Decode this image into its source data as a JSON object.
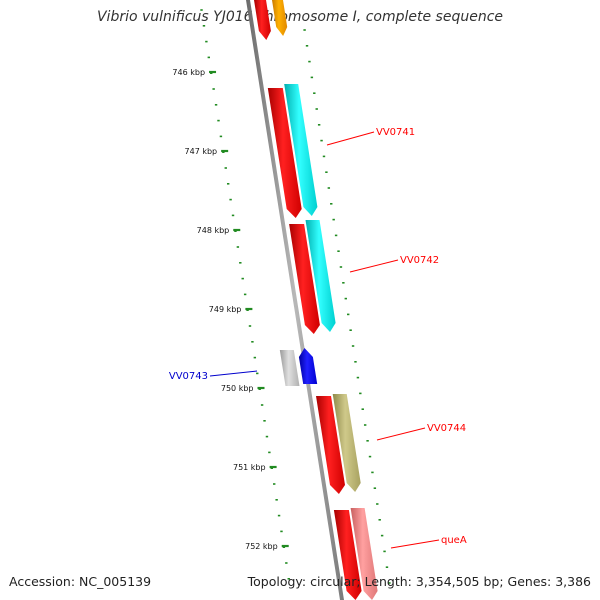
{
  "title": "Vibrio vulnificus YJ016 chromosome I, complete sequence",
  "accession_text": "Accession: NC_005139",
  "topology_text": "Topology: circular; Length: 3,354,505 bp; Genes: 3,386",
  "ruler": {
    "tick_color": "#228b22",
    "labels": [
      "746 kbp",
      "747 kbp",
      "748 kbp",
      "749 kbp",
      "750 kbp",
      "751 kbp",
      "752 kbp"
    ]
  },
  "backbone_color": "#8a8a8a",
  "features": [
    {
      "type": "gene",
      "label": "",
      "strand": "forward",
      "color": "#ff0000"
    },
    {
      "type": "cds",
      "label": "",
      "strand": "forward",
      "color": "#ffa500"
    },
    {
      "type": "gene",
      "label": "",
      "strand": "forward",
      "color": "#ff0000"
    },
    {
      "type": "cds",
      "label": "VV0741",
      "strand": "forward",
      "color": "#00ffff",
      "label_color": "#ff0000"
    },
    {
      "type": "gene",
      "label": "",
      "strand": "forward",
      "color": "#ff0000"
    },
    {
      "type": "cds",
      "label": "VV0742",
      "strand": "forward",
      "color": "#00ffff",
      "label_color": "#ff0000"
    },
    {
      "type": "other",
      "label": "",
      "strand": "none",
      "color": "#c0c0c0"
    },
    {
      "type": "feature",
      "label": "VV0743",
      "strand": "reverse",
      "color": "#0000ff",
      "label_color": "#0000cc"
    },
    {
      "type": "gene",
      "label": "",
      "strand": "forward",
      "color": "#ff0000"
    },
    {
      "type": "cds",
      "label": "VV0744",
      "strand": "forward",
      "color": "#bdb76b",
      "label_color": "#ff0000"
    },
    {
      "type": "gene",
      "label": "",
      "strand": "forward",
      "color": "#ff0000"
    },
    {
      "type": "cds",
      "label": "queA",
      "strand": "forward",
      "color": "#f08080",
      "label_color": "#ff0000"
    }
  ]
}
